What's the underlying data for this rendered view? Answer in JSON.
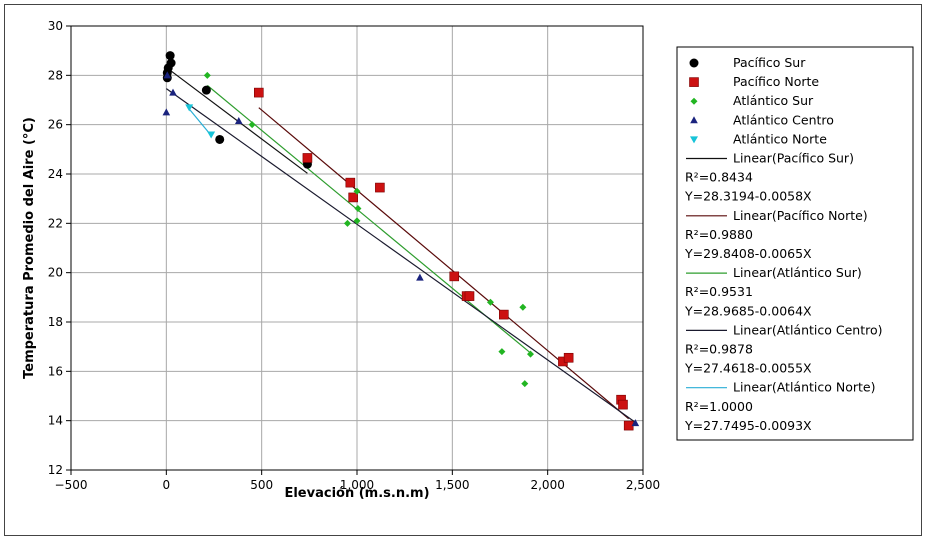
{
  "chart_data": {
    "type": "scatter",
    "xlabel": "Elevación (m.s.n.m)",
    "ylabel": "Temperatura Promedio del Aire (°C)",
    "xlim": [
      -500,
      2500
    ],
    "ylim": [
      12,
      30
    ],
    "xticks": [
      -500,
      0,
      500,
      1000,
      1500,
      2000,
      2500
    ],
    "xtick_labels": [
      "−500",
      "0",
      "500",
      "1,000",
      "1,500",
      "2,000",
      "2,500"
    ],
    "yticks": [
      12,
      14,
      16,
      18,
      20,
      22,
      24,
      26,
      28,
      30
    ],
    "ytick_labels": [
      "12",
      "14",
      "16",
      "18",
      "20",
      "22",
      "24",
      "26",
      "28",
      "30"
    ],
    "grid": true,
    "legend_position": "right",
    "series": [
      {
        "name": "Pacífico Sur",
        "marker": "circle",
        "color": "#000000",
        "points": [
          [
            20,
            28.8
          ],
          [
            25,
            28.5
          ],
          [
            10,
            28.3
          ],
          [
            5,
            28.1
          ],
          [
            5,
            27.9
          ],
          [
            210,
            27.4
          ],
          [
            280,
            25.4
          ],
          [
            740,
            24.4
          ]
        ]
      },
      {
        "name": "Pacífico Norte",
        "marker": "square",
        "color": "#cc1111",
        "points": [
          [
            485,
            27.3
          ],
          [
            740,
            24.65
          ],
          [
            965,
            23.65
          ],
          [
            980,
            23.05
          ],
          [
            1120,
            23.45
          ],
          [
            1510,
            19.85
          ],
          [
            1575,
            19.05
          ],
          [
            1590,
            19.05
          ],
          [
            1770,
            18.3
          ],
          [
            2080,
            16.4
          ],
          [
            2110,
            16.55
          ],
          [
            2385,
            14.85
          ],
          [
            2395,
            14.65
          ],
          [
            2425,
            13.8
          ]
        ]
      },
      {
        "name": "Atlántico Sur",
        "marker": "diamond",
        "color": "#22b522",
        "points": [
          [
            215,
            28.0
          ],
          [
            450,
            26.0
          ],
          [
            950,
            22.0
          ],
          [
            1000,
            23.3
          ],
          [
            1005,
            22.6
          ],
          [
            1000,
            22.1
          ],
          [
            1700,
            18.8
          ],
          [
            1760,
            16.8
          ],
          [
            1870,
            18.6
          ],
          [
            1880,
            15.5
          ],
          [
            1910,
            16.7
          ]
        ]
      },
      {
        "name": "Atlántico Centro",
        "marker": "triangle",
        "color": "#1a237e",
        "points": [
          [
            0,
            26.5
          ],
          [
            5,
            28.0
          ],
          [
            35,
            27.3
          ],
          [
            380,
            26.15
          ],
          [
            1330,
            19.8
          ],
          [
            2460,
            13.9
          ]
        ]
      },
      {
        "name": "Atlántico Norte",
        "marker": "triangle-down",
        "color": "#17c3d8",
        "points": [
          [
            120,
            26.7
          ],
          [
            235,
            25.6
          ]
        ]
      }
    ],
    "trendlines": [
      {
        "name": "Linear(Pacífico Sur)",
        "color": "#111111",
        "r2": "R²=0.8434",
        "equation": "Y=28.3194-0.0058X",
        "intercept": 28.3194,
        "slope": -0.0058,
        "x_range": [
          0,
          740
        ]
      },
      {
        "name": "Linear(Pacífico Norte)",
        "color": "#5a0a0a",
        "r2": "R²=0.9880",
        "equation": "Y=29.8408-0.0065X",
        "intercept": 29.8408,
        "slope": -0.0065,
        "x_range": [
          485,
          2425
        ]
      },
      {
        "name": "Linear(Atlántico Sur)",
        "color": "#2e9d2e",
        "r2": "R²=0.9531",
        "equation": "Y=28.9685-0.0064X",
        "intercept": 28.9685,
        "slope": -0.0064,
        "x_range": [
          215,
          1910
        ]
      },
      {
        "name": "Linear(Atlántico Centro)",
        "color": "#1a1a2e",
        "r2": "R²=0.9878",
        "equation": "Y=27.4618-0.0055X",
        "intercept": 27.4618,
        "slope": -0.0055,
        "x_range": [
          0,
          2460
        ]
      },
      {
        "name": "Linear(Atlántico Norte)",
        "color": "#2aaed6",
        "r2": "R²=1.0000",
        "equation": "Y=27.7495-0.0093X",
        "intercept": 27.7495,
        "slope": -0.0093,
        "x_range": [
          120,
          235
        ]
      }
    ]
  }
}
